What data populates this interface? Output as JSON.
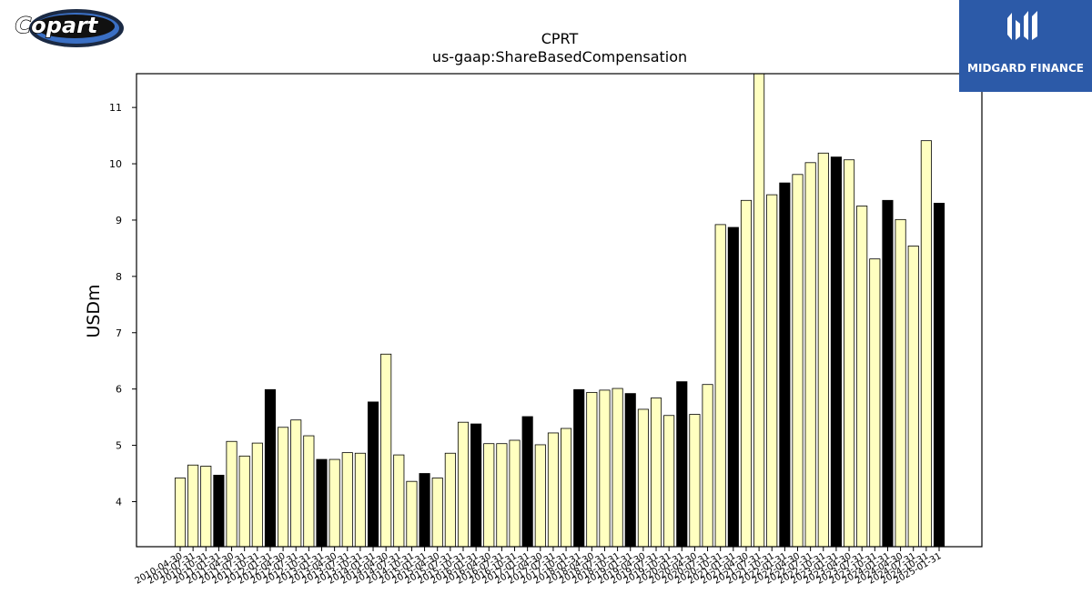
{
  "logos": {
    "left_text": "Copart",
    "right_text": "MIDGARD FINANCE"
  },
  "colors": {
    "bar_light": "#ffffc0",
    "bar_dark": "#000000",
    "edge": "#000000",
    "right_logo_bg": "#2c5aa8"
  },
  "chart_data": {
    "type": "bar",
    "title": "CPRT",
    "subtitle": "us-gaap:ShareBasedCompensation",
    "ylabel": "USDm",
    "xlabel": "",
    "ylim": [
      3.2,
      11.6
    ],
    "yticks": [
      4,
      5,
      6,
      7,
      8,
      9,
      10,
      11
    ],
    "grid": false,
    "categories": [
      "2010-04-30",
      "2010-07-31",
      "2010-10-31",
      "2011-01-31",
      "2011-04-30",
      "2011-07-31",
      "2011-10-31",
      "2012-01-31",
      "2012-04-30",
      "2012-07-31",
      "2012-10-31",
      "2013-01-31",
      "2013-04-30",
      "2013-07-31",
      "2013-10-31",
      "2014-01-31",
      "2014-04-30",
      "2014-07-31",
      "2014-10-31",
      "2015-01-31",
      "2015-04-30",
      "2015-07-31",
      "2015-10-31",
      "2016-01-31",
      "2016-04-30",
      "2016-07-31",
      "2016-10-31",
      "2017-01-31",
      "2017-04-30",
      "2017-07-31",
      "2017-10-31",
      "2018-01-31",
      "2018-04-30",
      "2018-07-31",
      "2018-10-31",
      "2019-01-31",
      "2019-04-30",
      "2019-07-31",
      "2019-10-31",
      "2020-01-31",
      "2020-04-30",
      "2020-07-31",
      "2020-10-31",
      "2021-01-31",
      "2021-04-30",
      "2021-07-31",
      "2021-10-31",
      "2022-01-31",
      "2022-04-30",
      "2022-07-31",
      "2022-10-31",
      "2023-01-31",
      "2023-04-30",
      "2023-07-31",
      "2023-10-31",
      "2024-01-31",
      "2024-04-30",
      "2024-07-31",
      "2024-10-31",
      "2025-01-31"
    ],
    "values": [
      4.42,
      4.65,
      4.63,
      4.47,
      5.07,
      4.81,
      5.04,
      5.99,
      5.32,
      5.45,
      5.17,
      4.75,
      4.75,
      4.87,
      4.86,
      5.77,
      6.62,
      4.83,
      4.36,
      4.5,
      4.42,
      4.86,
      5.41,
      5.38,
      5.03,
      5.03,
      5.09,
      5.51,
      5.01,
      5.22,
      5.3,
      5.99,
      5.94,
      5.98,
      6.01,
      5.92,
      5.64,
      5.84,
      5.53,
      6.13,
      5.55,
      6.08,
      8.92,
      8.87,
      9.35,
      11.65,
      9.45,
      9.66,
      9.81,
      10.02,
      10.19,
      10.12,
      10.07,
      9.25,
      8.31,
      9.35,
      9.01,
      8.54,
      10.41,
      9.3
    ],
    "highlight": [
      false,
      false,
      false,
      true,
      false,
      false,
      false,
      true,
      false,
      false,
      false,
      true,
      false,
      false,
      false,
      true,
      false,
      false,
      false,
      true,
      false,
      false,
      false,
      true,
      false,
      false,
      false,
      true,
      false,
      false,
      false,
      true,
      false,
      false,
      false,
      true,
      false,
      false,
      false,
      true,
      false,
      false,
      false,
      true,
      false,
      false,
      false,
      true,
      false,
      false,
      false,
      true,
      false,
      false,
      false,
      true,
      false,
      false,
      false,
      true
    ]
  }
}
